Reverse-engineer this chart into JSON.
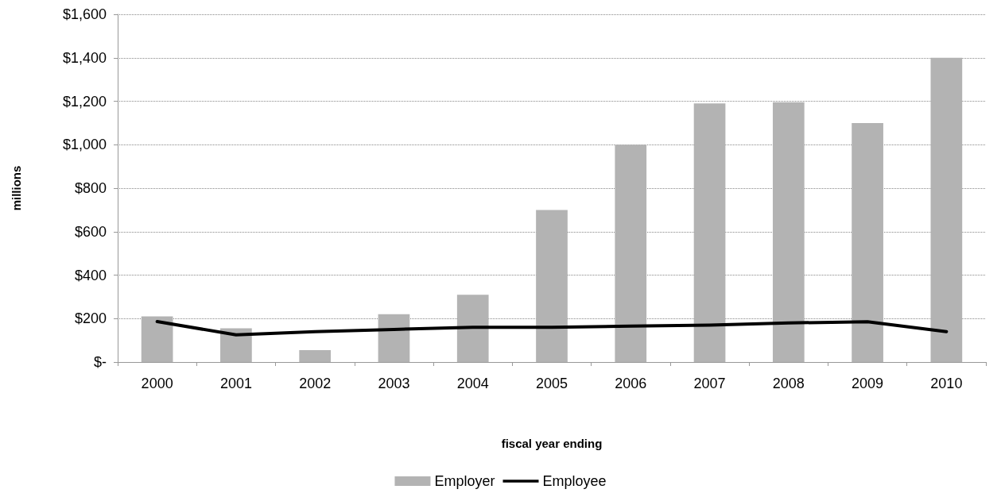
{
  "chart_data": {
    "type": "bar",
    "xlabel": "fiscal year ending",
    "ylabel": "millions",
    "categories": [
      "2000",
      "2001",
      "2002",
      "2003",
      "2004",
      "2005",
      "2006",
      "2007",
      "2008",
      "2009",
      "2010"
    ],
    "series": [
      {
        "name": "Employer",
        "color": "#b3b3b3",
        "values": [
          210,
          155,
          55,
          220,
          310,
          700,
          1000,
          1190,
          1195,
          1100,
          1400
        ]
      },
      {
        "name": "Employee",
        "type": "line",
        "color": "#000000",
        "values": [
          186,
          125,
          140,
          150,
          160,
          160,
          165,
          170,
          180,
          185,
          140
        ]
      }
    ],
    "ylim": [
      0,
      1600
    ],
    "yticks": [
      {
        "value": 0,
        "label": "$-"
      },
      {
        "value": 200,
        "label": "$200"
      },
      {
        "value": 400,
        "label": "$400"
      },
      {
        "value": 600,
        "label": "$600"
      },
      {
        "value": 800,
        "label": "$800"
      },
      {
        "value": 1000,
        "label": "$1,000"
      },
      {
        "value": 1200,
        "label": "$1,200"
      },
      {
        "value": 1400,
        "label": "$1,400"
      },
      {
        "value": 1600,
        "label": "$1,600"
      }
    ],
    "grid": "y",
    "legend": "bottom",
    "marker": "none",
    "line_style": "solid"
  }
}
